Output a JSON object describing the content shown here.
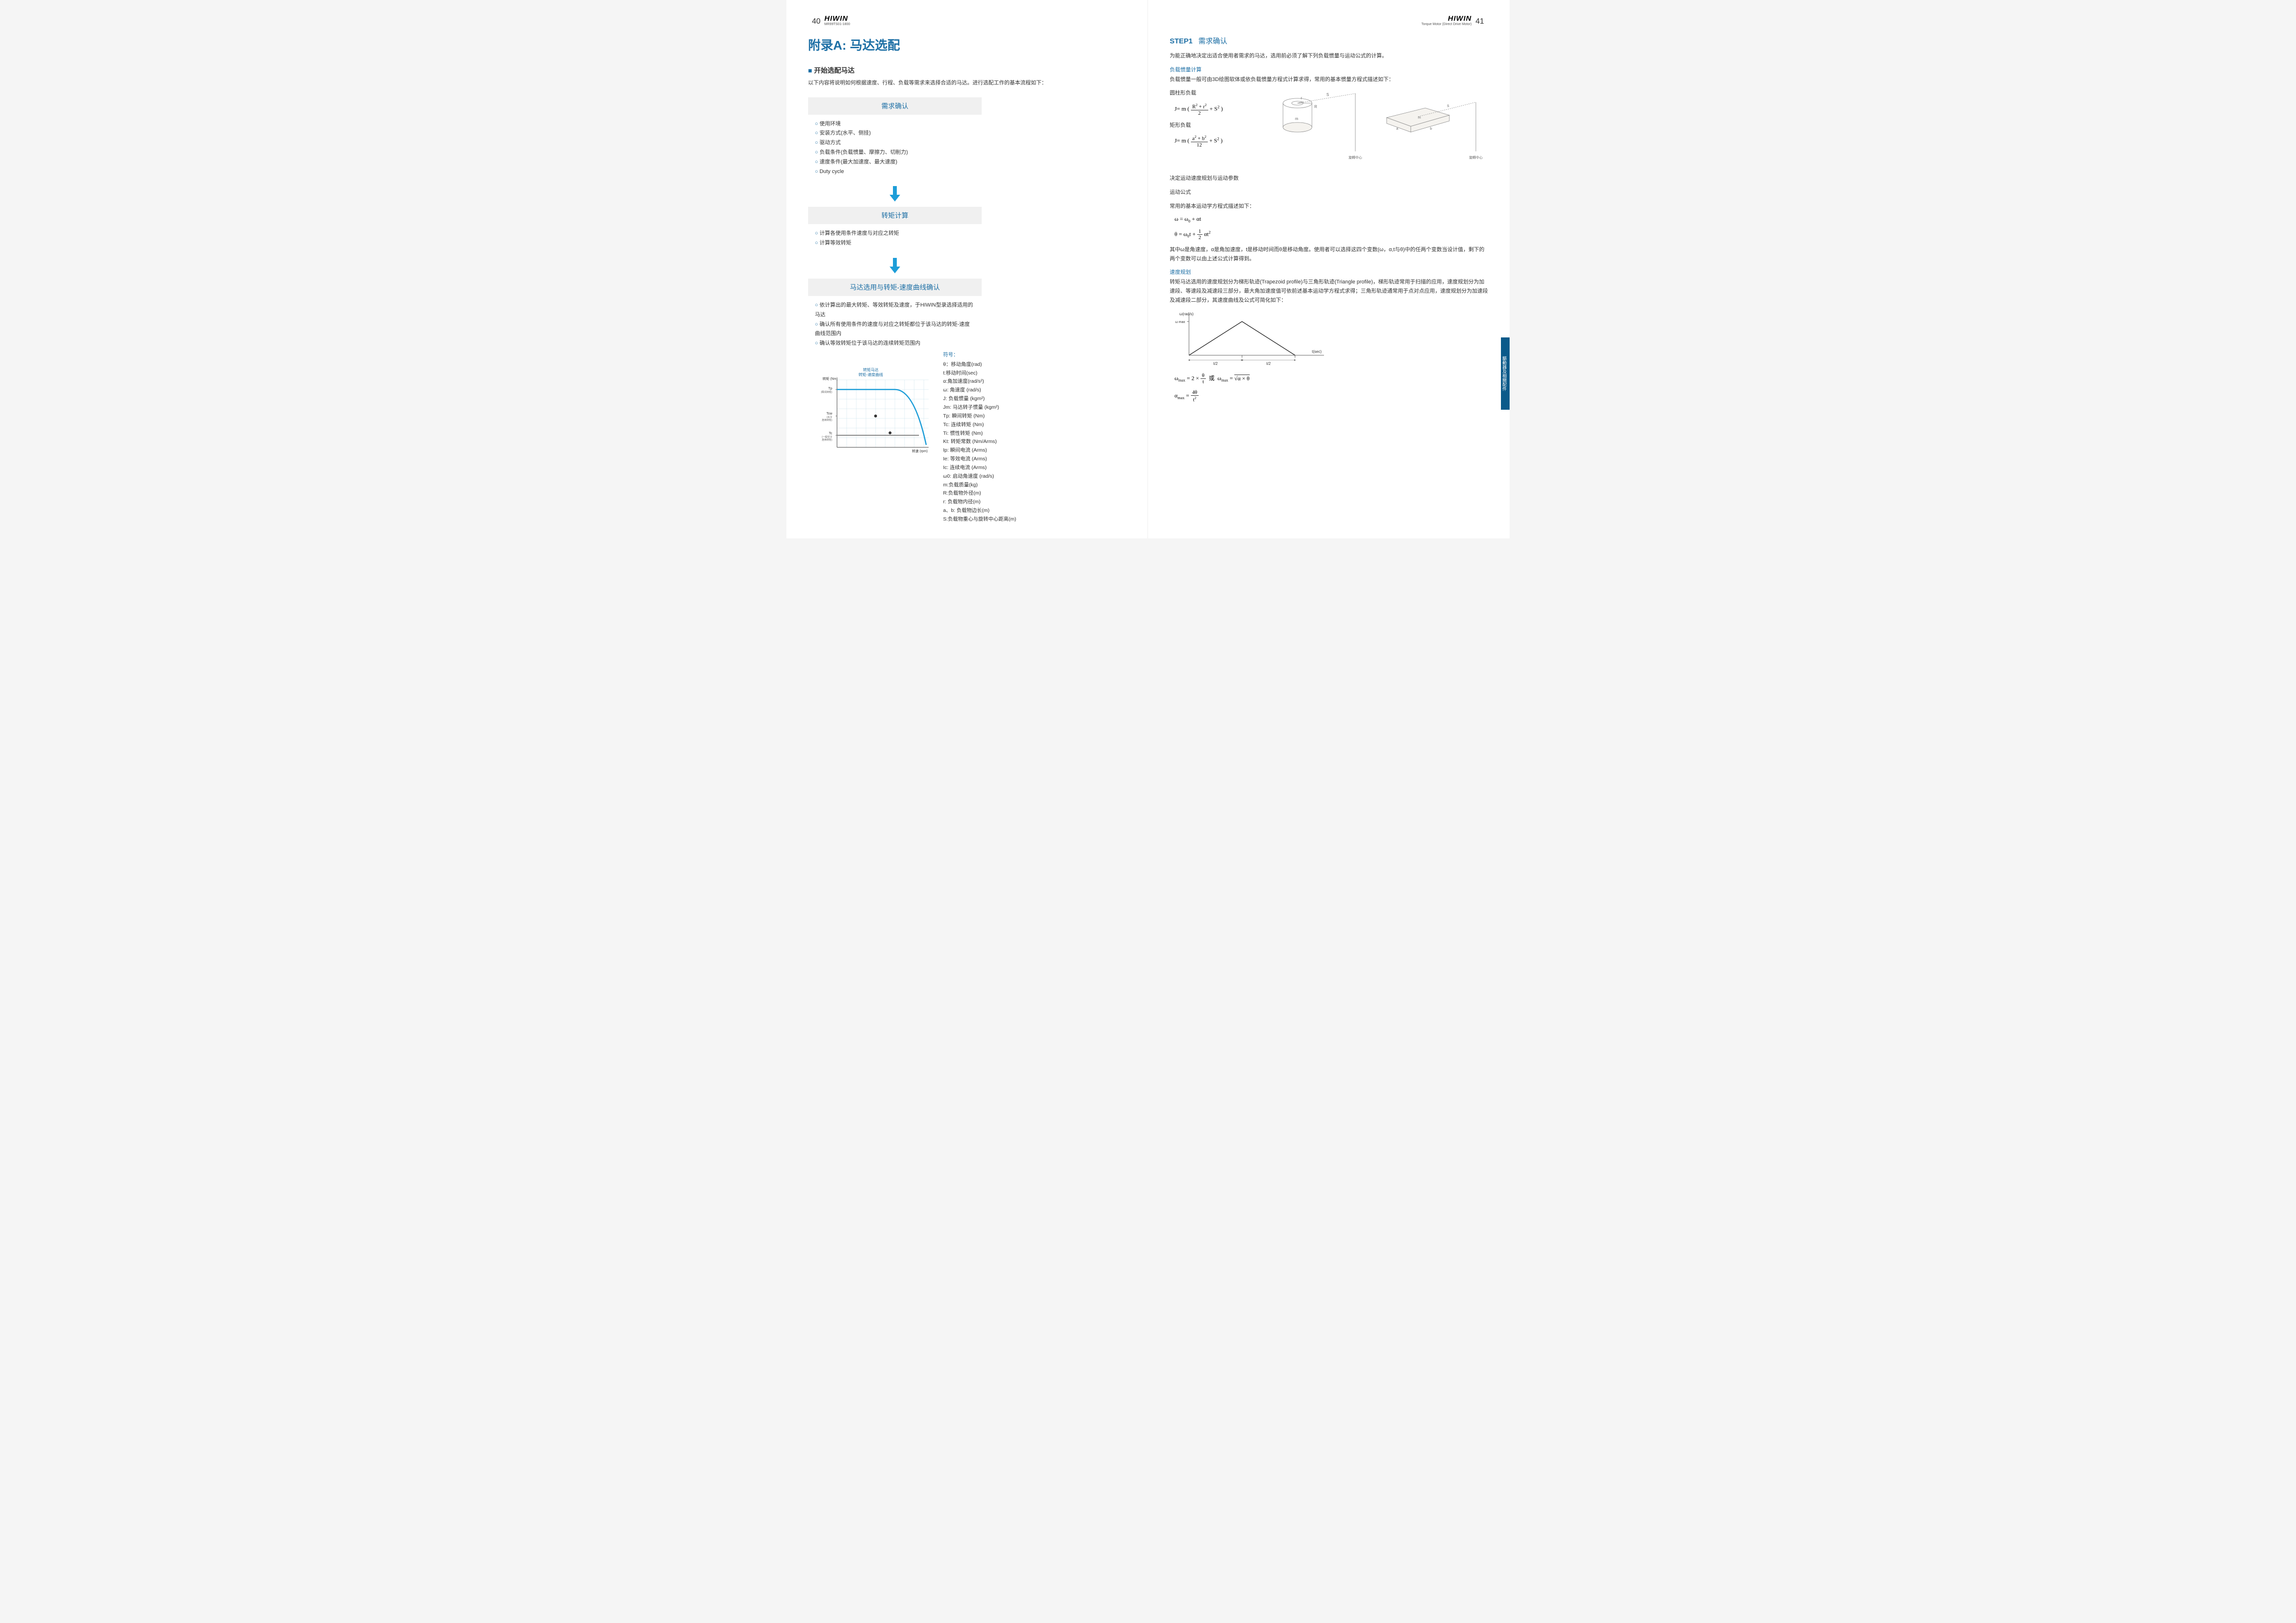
{
  "header": {
    "brand_name": "HIWIN",
    "brand_sub_left": "MR99TS01-1800",
    "brand_sub_right": "Torque Motor (Direct Drive Motor)",
    "page_left": "40",
    "page_right": "41"
  },
  "left": {
    "title": "附录A: 马达选配",
    "section_title": "开始选配马达",
    "intro": "以下内容将说明如何根据速度、行程、负载等需求来选择合适的马达。进行选配工作的基本流程如下：",
    "flow": [
      {
        "head": "需求确认",
        "items": [
          "使用环境",
          "安装方式(水平、侧挂)",
          "驱动方式",
          "负载条件(负载惯量、摩擦力、切削力)",
          "速度条件(最大加速度、最大速度)",
          "Duty cycle"
        ]
      },
      {
        "head": "转矩计算",
        "items": [
          "计算各使用条件速度与对应之转矩",
          "计算等效转矩"
        ]
      },
      {
        "head": "马达选用与转矩-速度曲线确认",
        "items": [
          "依计算出的最大转矩、等效转矩及速度，于HIWIN型录选择适用的马达",
          "确认所有使用条件的速度与对应之转矩都位于该马达的转矩-速度曲线范围内",
          "确认等效转矩位于该马达的连续转矩范围内"
        ]
      }
    ],
    "chart": {
      "title1": "转矩马达",
      "title2": "转矩-速度曲线",
      "ylabel": "转矩 (Nm)",
      "xlabel": "转速 (rpm)",
      "tp_label": "Tp",
      "tp_sub": "(瞬间转矩)",
      "tcw_label": "Tcw",
      "tcw_sub1": "(水冷",
      "tcw_sub2": "连续转矩)",
      "tc_label": "Tc",
      "tc_sub1": "(一般空冷",
      "tc_sub2": "连续转矩)",
      "colors": {
        "tp_line": "#1d9dd8",
        "tc_line": "#888888",
        "grid": "#c8e0ec",
        "axis": "#666666"
      }
    },
    "symbols": {
      "head": "符号：",
      "items": [
        "θ：移动角度(rad)",
        "t:移动时间(sec)",
        "α:角加速度(rad/s²)",
        "ω: 角速度 (rad/s)",
        "J: 负载惯量 (kgm²)",
        "Jm: 马达转子惯量 (kgm²)",
        "Tp: 瞬间转矩 (Nm)",
        "Tc: 连续转矩 (Nm)",
        "Ti: 惯性转矩 (Nm)",
        "Kt: 转矩常数 (Nm/Arms)",
        "Ip: 瞬间电流 (Arms)",
        "Ie: 等效电流 (Arms)",
        "Ic: 连续电流 (Arms)",
        "ω0: 启动角速度 (rad/s)",
        "m:负载质量(kg)",
        "R:负载物外径(m)",
        "r: 负载物内径(m)",
        "a、b: 负载物边长(m)",
        "S:负载物重心与旋转中心距离(m)"
      ]
    }
  },
  "right": {
    "step_num": "STEP1",
    "step_title": "需求确认",
    "intro": "为能正确地决定出适合使用者需求的马达，选用前必须了解下列负载惯量与运动公式的计算。",
    "inertia_head": "负载惯量计算",
    "inertia_text": "负载惯量一般可由3D绘图软体或依负载惯量方程式计算求得，常用的基本惯量方程式描述如下：",
    "cyl_label": "圆柱形负载",
    "rect_label": "矩形负载",
    "rot_center": "旋轉中心",
    "diag_cyl": {
      "r": "r",
      "R": "R",
      "S": "S",
      "m": "m"
    },
    "diag_rect": {
      "a": "a",
      "b": "b",
      "S": "S",
      "m": "m"
    },
    "motion_head1": "决定运动速度规划与运动参数",
    "motion_head2": "运动公式",
    "motion_text": "常用的基本运动学方程式描述如下：",
    "motion_desc": "其中ω是角速度，α是角加速度，t是移动时间而θ是移动角度。使用者可以选择这四个变数(ω，α,t与θ)中的任两个变数当设计值，剩下的两个变数可以由上述公式计算得到。",
    "speed_head": "速度规划",
    "speed_text": "转矩马达选用的速度规划分为梯形轨迹(Trapezoid profile)与三角形轨迹(Triangle profile)，梯形轨迹常用于扫描的应用，速度规划分为加速段、等速段及减速段三部分，最大角加速度值可依前述基本运动学方程式求得；三角形轨迹通常用于点对点应用，速度规划分为加速段及减速段二部分，其速度曲线及公式可简化如下：",
    "tri_chart": {
      "ylabel": "ω(rad/s)",
      "ymax": "ω max",
      "xlabel": "t(sec)",
      "half1": "t/2",
      "half2": "t/2"
    },
    "side_tab": "驅動器及相關配件"
  }
}
